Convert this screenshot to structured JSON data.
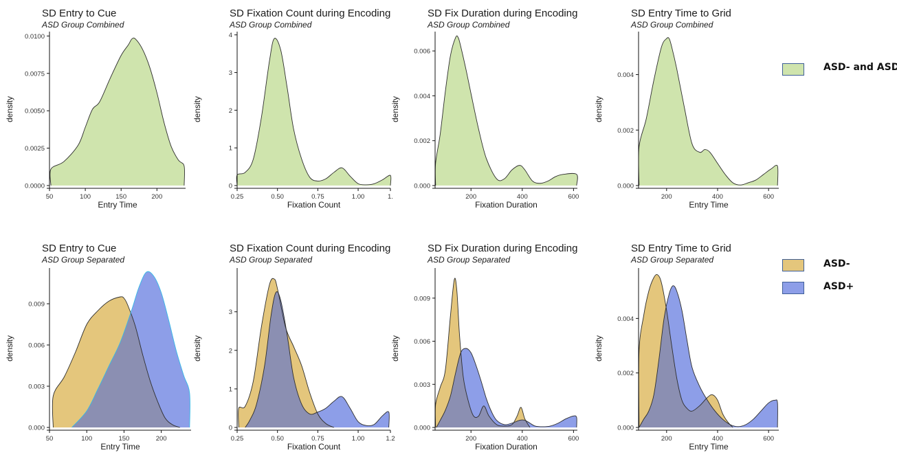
{
  "colors": {
    "combined_fill": "#cfe4ad",
    "asd_neg_fill": "#e4c67c",
    "asd_pos_fill": "#8d9ee8",
    "overlap_fill": "#8b8fb2",
    "curve_stroke": "#2d2d2d",
    "asd_pos_edge_cue": "#35b9e6",
    "legend_border": "#3f5f98"
  },
  "legend_top": {
    "entries": [
      {
        "label": "ASD- and ASD+",
        "color": "#cfe4ad"
      }
    ]
  },
  "legend_bottom": {
    "entries": [
      {
        "label": "ASD-",
        "color": "#e4c67c"
      },
      {
        "label": "ASD+",
        "color": "#8d9ee8"
      }
    ]
  },
  "chart_data": [
    {
      "type": "area",
      "title": "SD Entry to Cue",
      "subtitle": "ASD Group Combined",
      "xlabel": "Entry Time",
      "ylabel": "density",
      "xlim": [
        50,
        240
      ],
      "ylim": [
        0,
        0.0102
      ],
      "xticks": [
        50,
        100,
        150,
        200
      ],
      "xtick_labels": [
        "50",
        "100",
        "150",
        "200"
      ],
      "yticks": [
        0,
        0.0025,
        0.005,
        0.0075,
        0.01
      ],
      "ytick_labels": [
        "0.0000",
        "0.0025",
        "0.0050",
        "0.0075",
        "0.0100"
      ],
      "series": [
        {
          "x": [
            52,
            52,
            70,
            90,
            100,
            110,
            120,
            135,
            150,
            160,
            165,
            170,
            180,
            190,
            200,
            210,
            220,
            230,
            238,
            238
          ],
          "y": [
            0,
            0.0011,
            0.0016,
            0.0027,
            0.0039,
            0.0051,
            0.0056,
            0.0072,
            0.0087,
            0.0094,
            0.0098,
            0.0098,
            0.0091,
            0.0079,
            0.0062,
            0.0042,
            0.0026,
            0.0017,
            0.0013,
            0
          ]
        }
      ]
    },
    {
      "type": "area",
      "title": "SD Fixation Count during Encoding",
      "subtitle": "ASD Group Combined",
      "xlabel": "Fixation Count",
      "ylabel": "density",
      "xlim": [
        0.25,
        1.2
      ],
      "ylim": [
        0,
        4.05
      ],
      "xticks": [
        0.25,
        0.5,
        0.75,
        1.0,
        1.2
      ],
      "xtick_labels": [
        "0.25",
        "0.50",
        "0.75",
        "1.00",
        "1."
      ],
      "yticks": [
        0,
        1,
        2,
        3,
        4
      ],
      "ytick_labels": [
        "0",
        "1",
        "2",
        "3",
        "4"
      ],
      "series": [
        {
          "x": [
            0.25,
            0.25,
            0.3,
            0.35,
            0.4,
            0.45,
            0.48,
            0.52,
            0.56,
            0.6,
            0.65,
            0.7,
            0.75,
            0.8,
            0.85,
            0.9,
            0.95,
            1.0,
            1.05,
            1.1,
            1.15,
            1.2,
            1.2
          ],
          "y": [
            0,
            0.28,
            0.35,
            0.7,
            1.8,
            3.3,
            3.9,
            3.6,
            2.6,
            1.5,
            0.7,
            0.22,
            0.12,
            0.18,
            0.35,
            0.47,
            0.25,
            0.05,
            0.02,
            0.05,
            0.15,
            0.27,
            0
          ]
        }
      ]
    },
    {
      "type": "area",
      "title": "SD Fix Duration during Encoding",
      "subtitle": "ASD Group Combined",
      "xlabel": "Fixation Duration",
      "ylabel": "density",
      "xlim": [
        60,
        615
      ],
      "ylim": [
        0,
        0.0068
      ],
      "xticks": [
        200,
        400,
        600
      ],
      "xtick_labels": [
        "200",
        "400",
        "600"
      ],
      "yticks": [
        0,
        0.002,
        0.004,
        0.006
      ],
      "ytick_labels": [
        "0.000",
        "0.002",
        "0.004",
        "0.006"
      ],
      "series": [
        {
          "x": [
            62,
            62,
            80,
            100,
            120,
            140,
            150,
            160,
            180,
            200,
            230,
            260,
            300,
            330,
            360,
            390,
            410,
            440,
            470,
            500,
            530,
            560,
            612,
            612
          ],
          "y": [
            0,
            0.001,
            0.0023,
            0.0042,
            0.0058,
            0.0066,
            0.0066,
            0.0062,
            0.0052,
            0.0041,
            0.0025,
            0.0012,
            0.0003,
            0.0003,
            0.0007,
            0.0009,
            0.0007,
            0.0002,
            0.0001,
            0.0002,
            0.0004,
            0.0005,
            0.0005,
            0
          ]
        }
      ]
    },
    {
      "type": "area",
      "title": "SD Entry Time to Grid",
      "subtitle": "ASD Group Combined",
      "xlabel": "Entry Time",
      "ylabel": "density",
      "xlim": [
        90,
        640
      ],
      "ylim": [
        0,
        0.0055
      ],
      "xticks": [
        200,
        400,
        600
      ],
      "xtick_labels": [
        "200",
        "400",
        "600"
      ],
      "yticks": [
        0,
        0.002,
        0.004
      ],
      "ytick_labels": [
        "0.000",
        "0.002",
        "0.004"
      ],
      "series": [
        {
          "x": [
            92,
            92,
            120,
            150,
            180,
            200,
            210,
            220,
            240,
            270,
            300,
            330,
            350,
            370,
            400,
            430,
            460,
            490,
            520,
            550,
            580,
            610,
            635,
            635
          ],
          "y": [
            0,
            0.0014,
            0.0024,
            0.0038,
            0.005,
            0.0053,
            0.0053,
            0.005,
            0.0042,
            0.0028,
            0.0015,
            0.0012,
            0.0013,
            0.0012,
            0.0008,
            0.0004,
            0.0001,
            2e-05,
            0.0001,
            0.0002,
            0.0004,
            0.0006,
            0.0007,
            0
          ]
        }
      ]
    },
    {
      "type": "area",
      "title": "SD Entry to Cue",
      "subtitle": "ASD Group Separated",
      "xlabel": "Entry Time",
      "ylabel": "density",
      "xlim": [
        50,
        240
      ],
      "ylim": [
        0,
        0.0115
      ],
      "xticks": [
        50,
        100,
        150,
        200
      ],
      "xtick_labels": [
        "50",
        "100",
        "150",
        "200"
      ],
      "yticks": [
        0,
        0.003,
        0.006,
        0.009
      ],
      "ytick_labels": [
        "0.000",
        "0.003",
        "0.006",
        "0.009"
      ],
      "series": [
        {
          "name": "ASD-",
          "x": [
            55,
            55,
            70,
            85,
            100,
            115,
            130,
            145,
            150,
            155,
            165,
            175,
            185,
            195,
            205,
            215,
            225
          ],
          "y": [
            0,
            0.0023,
            0.0037,
            0.0055,
            0.0075,
            0.0085,
            0.0092,
            0.0095,
            0.0094,
            0.0089,
            0.0074,
            0.0053,
            0.0034,
            0.0019,
            0.0007,
            0.0002,
            0
          ]
        },
        {
          "name": "ASD+",
          "x": [
            80,
            100,
            115,
            130,
            145,
            160,
            170,
            180,
            190,
            200,
            210,
            220,
            230,
            238,
            238
          ],
          "y": [
            0,
            0.0012,
            0.0028,
            0.0045,
            0.0062,
            0.0085,
            0.0102,
            0.0113,
            0.011,
            0.0098,
            0.0078,
            0.0056,
            0.0038,
            0.0025,
            0
          ]
        }
      ]
    },
    {
      "type": "area",
      "title": "SD Fixation Count during Encoding",
      "subtitle": "ASD Group Separated",
      "xlabel": "Fixation Count",
      "ylabel": "density",
      "xlim": [
        0.25,
        1.2
      ],
      "ylim": [
        0,
        4.1
      ],
      "xticks": [
        0.25,
        0.5,
        0.75,
        1.0,
        1.2
      ],
      "xtick_labels": [
        "0.25",
        "0.50",
        "0.75",
        "1.00",
        "1.2"
      ],
      "yticks": [
        0,
        1,
        2,
        3
      ],
      "ytick_labels": [
        "0",
        "1",
        "2",
        "3"
      ],
      "series": [
        {
          "name": "ASD-",
          "x": [
            0.26,
            0.26,
            0.3,
            0.35,
            0.4,
            0.45,
            0.48,
            0.5,
            0.55,
            0.6,
            0.65,
            0.7,
            0.75,
            0.8,
            0.85
          ],
          "y": [
            0,
            0.5,
            0.55,
            1.2,
            2.6,
            3.7,
            3.85,
            3.6,
            2.6,
            2.1,
            1.6,
            0.9,
            0.35,
            0.1,
            0
          ]
        },
        {
          "name": "ASD+",
          "x": [
            0.3,
            0.33,
            0.37,
            0.42,
            0.46,
            0.49,
            0.52,
            0.56,
            0.6,
            0.65,
            0.7,
            0.75,
            0.8,
            0.85,
            0.9,
            0.95,
            1.0,
            1.05,
            1.1,
            1.15,
            1.19,
            1.19
          ],
          "y": [
            0,
            0.2,
            0.6,
            1.6,
            2.9,
            3.5,
            3.3,
            2.4,
            1.3,
            0.6,
            0.35,
            0.4,
            0.5,
            0.68,
            0.8,
            0.5,
            0.15,
            0.05,
            0.08,
            0.3,
            0.4,
            0
          ]
        }
      ]
    },
    {
      "type": "area",
      "title": "SD Fix Duration during Encoding",
      "subtitle": "ASD Group Separated",
      "xlabel": "Fixation Duration",
      "ylabel": "density",
      "xlim": [
        60,
        615
      ],
      "ylim": [
        0,
        0.011
      ],
      "xticks": [
        200,
        400,
        600
      ],
      "xtick_labels": [
        "200",
        "400",
        "600"
      ],
      "yticks": [
        0,
        0.003,
        0.006,
        0.009
      ],
      "ytick_labels": [
        "0.000",
        "0.003",
        "0.006",
        "0.009"
      ],
      "series": [
        {
          "name": "ASD-",
          "x": [
            62,
            62,
            80,
            100,
            120,
            135,
            145,
            155,
            170,
            190,
            210,
            230,
            250,
            270,
            300,
            330,
            360,
            380,
            395,
            410,
            430
          ],
          "y": [
            0,
            0.0016,
            0.0028,
            0.004,
            0.0078,
            0.0103,
            0.0095,
            0.0065,
            0.0035,
            0.0018,
            0.0008,
            0.0008,
            0.0015,
            0.0008,
            0.0002,
            0.0001,
            0.0002,
            0.0008,
            0.0014,
            0.0006,
            0
          ]
        },
        {
          "name": "ASD+",
          "x": [
            65,
            80,
            100,
            120,
            140,
            160,
            180,
            200,
            220,
            240,
            260,
            280,
            300,
            330,
            360,
            390,
            410,
            430,
            450,
            480,
            510,
            540,
            570,
            600,
            612,
            612
          ],
          "y": [
            0,
            0.0005,
            0.0012,
            0.0022,
            0.0038,
            0.0052,
            0.0055,
            0.0052,
            0.0043,
            0.0032,
            0.002,
            0.0011,
            0.0005,
            0.0002,
            0.0003,
            0.0005,
            0.0005,
            0.0003,
            0.0001,
            5e-05,
            0.0001,
            0.0003,
            0.0006,
            0.0008,
            0.0007,
            0
          ]
        }
      ]
    },
    {
      "type": "area",
      "title": "SD Entry Time to Grid",
      "subtitle": "ASD Group Separated",
      "xlabel": "Entry Time",
      "ylabel": "density",
      "xlim": [
        90,
        640
      ],
      "ylim": [
        0,
        0.0058
      ],
      "xticks": [
        200,
        400,
        600
      ],
      "xtick_labels": [
        "200",
        "400",
        "600"
      ],
      "yticks": [
        0,
        0.002,
        0.004
      ],
      "ytick_labels": [
        "0.000",
        "0.002",
        "0.004"
      ],
      "series": [
        {
          "name": "ASD-",
          "x": [
            92,
            92,
            110,
            130,
            150,
            165,
            180,
            200,
            220,
            240,
            260,
            280,
            300,
            330,
            360,
            380,
            400,
            420,
            440,
            460
          ],
          "y": [
            0,
            0.0028,
            0.0041,
            0.005,
            0.0055,
            0.0056,
            0.0053,
            0.0043,
            0.003,
            0.0018,
            0.001,
            0.0007,
            0.0006,
            0.0008,
            0.0011,
            0.0012,
            0.001,
            0.0005,
            0.0002,
            0
          ]
        },
        {
          "name": "ASD+",
          "x": [
            92,
            110,
            130,
            150,
            170,
            190,
            210,
            225,
            240,
            260,
            280,
            300,
            330,
            360,
            390,
            420,
            450,
            480,
            510,
            540,
            570,
            600,
            625,
            635,
            635
          ],
          "y": [
            0,
            0.0003,
            0.0006,
            0.0012,
            0.0025,
            0.004,
            0.0049,
            0.0052,
            0.005,
            0.0043,
            0.0032,
            0.0022,
            0.0015,
            0.001,
            0.0006,
            0.0003,
            0.0001,
            3e-05,
            0.0001,
            0.0003,
            0.0006,
            0.0009,
            0.001,
            0.0009,
            0
          ]
        }
      ]
    }
  ]
}
